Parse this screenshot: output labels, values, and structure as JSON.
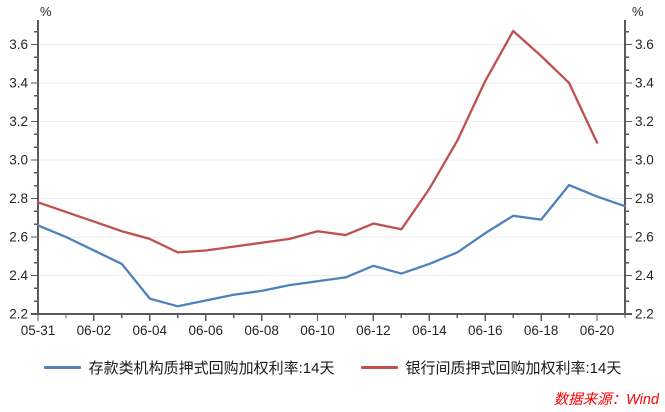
{
  "chart_data": {
    "type": "line",
    "title": "",
    "y_unit": "%",
    "ylim": [
      2.2,
      3.727
    ],
    "y_major_ticks": [
      2.2,
      2.4,
      2.6,
      2.8,
      3.0,
      3.2,
      3.4,
      3.6
    ],
    "y_minor_divisions_per_major": 3,
    "grid": "horizontal-major",
    "legend_position": "bottom-center",
    "x_dates": [
      "05-31",
      "06-01",
      "06-02",
      "06-03",
      "06-04",
      "06-05",
      "06-06",
      "06-07",
      "06-08",
      "06-09",
      "06-10",
      "06-11",
      "06-12",
      "06-13",
      "06-14",
      "06-15",
      "06-16",
      "06-17",
      "06-18",
      "06-19",
      "06-20",
      "06-21"
    ],
    "x_tick_labels": [
      "05-31",
      "06-02",
      "06-04",
      "06-06",
      "06-08",
      "06-10",
      "06-12",
      "06-14",
      "06-16",
      "06-18",
      "06-20"
    ],
    "series": [
      {
        "name": "存款类机构质押式回购加权利率:14天",
        "color": "#4f81bd",
        "values": [
          2.66,
          2.6,
          2.53,
          2.46,
          2.28,
          2.24,
          2.27,
          2.3,
          2.32,
          2.35,
          2.37,
          2.39,
          2.45,
          2.41,
          2.46,
          2.52,
          2.62,
          2.71,
          2.69,
          2.87,
          2.81,
          2.76
        ]
      },
      {
        "name": "银行间质押式回购加权利率:14天",
        "color": "#c0504d",
        "values": [
          2.78,
          2.73,
          2.68,
          2.63,
          2.59,
          2.52,
          2.53,
          2.55,
          2.57,
          2.59,
          2.63,
          2.61,
          2.67,
          2.64,
          2.85,
          3.1,
          3.41,
          3.67,
          3.54,
          3.4,
          3.09,
          null
        ]
      }
    ],
    "source_note": "数据来源：Wind",
    "source_color": "#ff0000",
    "axis_color": "#595959",
    "label_color": "#262626",
    "grid_color": "#eeeeee"
  }
}
